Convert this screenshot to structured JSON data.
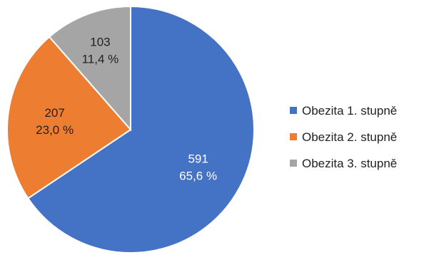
{
  "chart_data": {
    "type": "pie",
    "title": "",
    "legend_position": "right",
    "slices": [
      {
        "name": "Obezita 1. stupně",
        "value": 591,
        "percent_label": "65,6 %",
        "color": "#4472C4",
        "label_color": "#ffffff"
      },
      {
        "name": "Obezita 2. stupně",
        "value": 207,
        "percent_label": "23,0 %",
        "color": "#ED7D31",
        "label_color": "#222222"
      },
      {
        "name": "Obezita 3. stupně",
        "value": 103,
        "percent_label": "11,4 %",
        "color": "#A5A5A5",
        "label_color": "#222222"
      }
    ],
    "start_angle_deg": 0,
    "direction": "clockwise",
    "slice_border_color": "#ffffff"
  }
}
